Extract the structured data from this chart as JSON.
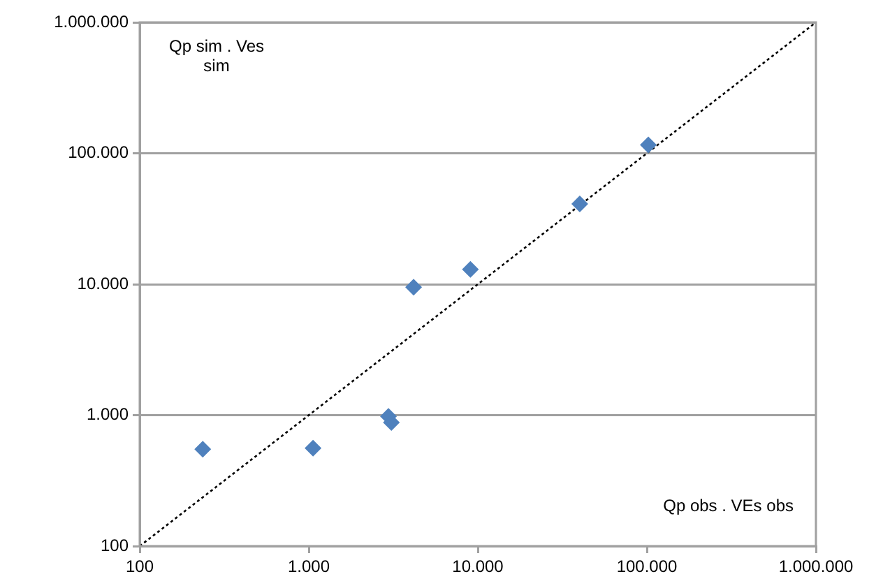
{
  "chart_data": {
    "type": "scatter",
    "log": "xy",
    "marker": "diamond",
    "grid": "y",
    "legend": false,
    "xlim": [
      100,
      1000000
    ],
    "ylim": [
      100,
      1000000
    ],
    "xticks": [
      {
        "value": 100,
        "label": "100"
      },
      {
        "value": 1000,
        "label": "1.000"
      },
      {
        "value": 10000,
        "label": "10.000"
      },
      {
        "value": 100000,
        "label": "100.000"
      },
      {
        "value": 1000000,
        "label": "1.000.000"
      }
    ],
    "yticks": [
      {
        "value": 100,
        "label": "100"
      },
      {
        "value": 1000,
        "label": "1.000"
      },
      {
        "value": 10000,
        "label": "10.000"
      },
      {
        "value": 100000,
        "label": "100.000"
      },
      {
        "value": 1000000,
        "label": "1.000.000"
      }
    ],
    "series": [
      {
        "color": "#4f81bd",
        "x": [
          236,
          1060,
          2960,
          3080,
          4170,
          9040,
          40100,
          102000
        ],
        "values": [
          550,
          560,
          980,
          880,
          9500,
          13000,
          41000,
          116000
        ]
      },
      {
        "type": "line",
        "color": "#000000",
        "line_style": "dotted",
        "marker": "none",
        "x": [
          100,
          1000000
        ],
        "values": [
          100,
          1000000
        ]
      }
    ],
    "annotations": [
      "Qp sim . Ves sim",
      "Qp obs . VEs obs"
    ]
  }
}
